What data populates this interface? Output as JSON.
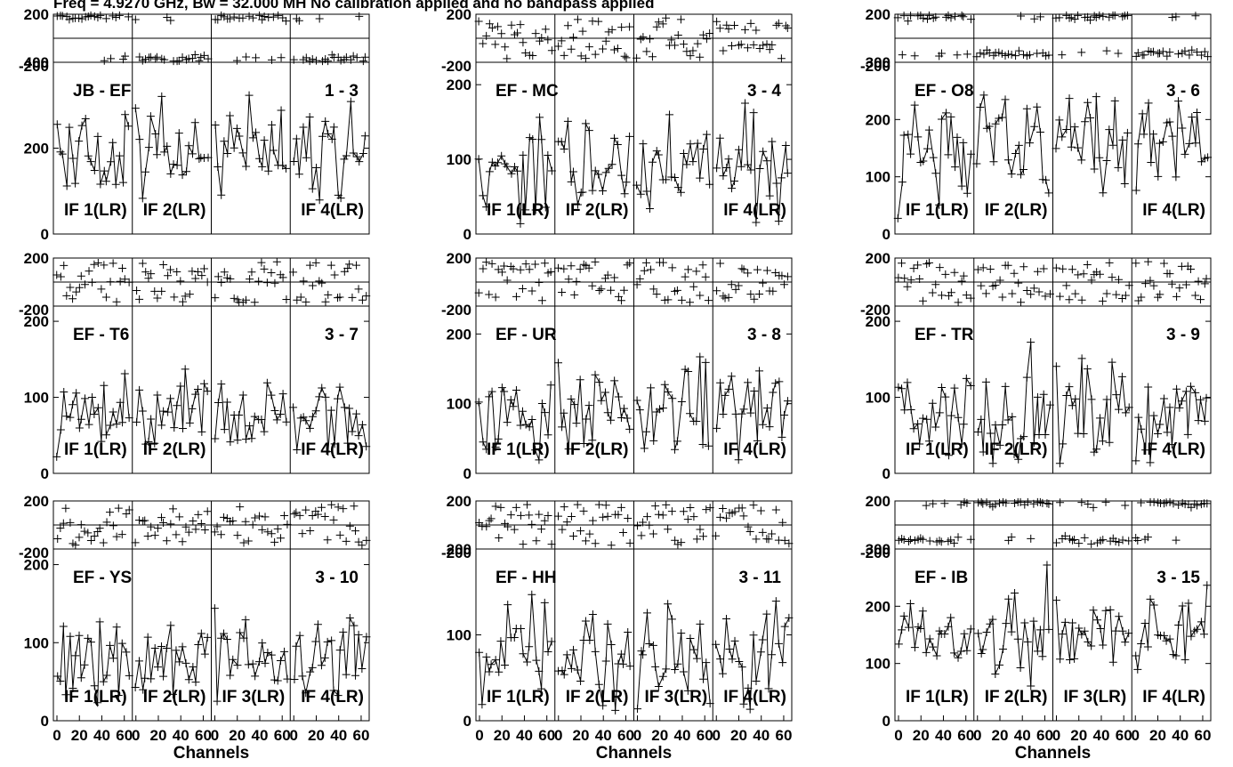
{
  "header": {
    "title": "Freq = 4.9270 GHz, Bw = 32.000 MH   No calibration applied and no bandpass applied"
  },
  "colors": {
    "ink": "#000000",
    "background": "#ffffff"
  },
  "chart_data": {
    "type": "line",
    "x_axis_label": "Channels",
    "x_tick_labels": [
      "0",
      "20",
      "40",
      "60"
    ],
    "xlim": [
      0,
      64
    ],
    "phase_ylim": [
      -200,
      200
    ],
    "phase_tick_labels": [
      "200",
      "-200"
    ],
    "if_labels": [
      "IF 1(LR)",
      "IF 2(LR)",
      "IF 3(LR)",
      "IF 4(LR)"
    ],
    "markers": "plus",
    "panels": [
      {
        "baseline": "JB - EF",
        "antennas": "1 - 3",
        "amp_ylim": [
          0,
          400
        ],
        "amp_ticks": [
          0,
          200,
          400
        ],
        "amp_tick_labels": [
          "0",
          "200",
          "400"
        ],
        "amp_center": 200,
        "amp_spread": 75,
        "phase_mode": "two-level",
        "phase_levels": [
          170,
          -170
        ],
        "if_label_show": [
          true,
          true,
          false,
          true
        ],
        "x_ticks_show": false
      },
      {
        "baseline": "EF - MC",
        "antennas": "3 - 4",
        "amp_ylim": [
          0,
          230
        ],
        "amp_ticks": [
          0,
          100,
          200
        ],
        "amp_tick_labels": [
          "0",
          "100",
          "200"
        ],
        "amp_center": 90,
        "amp_spread": 50,
        "phase_mode": "scatter",
        "phase_levels": [
          0
        ],
        "if_label_show": [
          true,
          true,
          false,
          true
        ],
        "x_ticks_show": false
      },
      {
        "baseline": "EF - O8",
        "antennas": "3 - 6",
        "amp_ylim": [
          0,
          300
        ],
        "amp_ticks": [
          0,
          100,
          200,
          300
        ],
        "amp_tick_labels": [
          "0",
          "100",
          "200",
          "300"
        ],
        "amp_center": 150,
        "amp_spread": 70,
        "phase_mode": "two-level",
        "phase_levels": [
          180,
          -130
        ],
        "if_label_show": [
          true,
          true,
          false,
          true
        ],
        "x_ticks_show": false
      },
      {
        "baseline": "EF - T6",
        "antennas": "3 - 7",
        "amp_ylim": [
          0,
          220
        ],
        "amp_ticks": [
          0,
          100,
          200
        ],
        "amp_tick_labels": [
          "0",
          "100",
          "200"
        ],
        "amp_center": 75,
        "amp_spread": 40,
        "phase_mode": "scatter",
        "phase_levels": [
          0
        ],
        "if_label_show": [
          true,
          true,
          false,
          true
        ],
        "x_ticks_show": false
      },
      {
        "baseline": "EF - UR",
        "antennas": "3 - 8",
        "amp_ylim": [
          0,
          240
        ],
        "amp_ticks": [
          0,
          100,
          200
        ],
        "amp_tick_labels": [
          "0",
          "100",
          "200"
        ],
        "amp_center": 90,
        "amp_spread": 45,
        "phase_mode": "scatter",
        "phase_levels": [
          0
        ],
        "if_label_show": [
          true,
          true,
          false,
          true
        ],
        "x_ticks_show": false
      },
      {
        "baseline": "EF - TR",
        "antennas": "3 - 9",
        "amp_ylim": [
          0,
          220
        ],
        "amp_ticks": [
          0,
          100,
          200
        ],
        "amp_tick_labels": [
          "0",
          "100",
          "200"
        ],
        "amp_center": 80,
        "amp_spread": 45,
        "phase_mode": "scatter",
        "phase_levels": [
          0
        ],
        "if_label_show": [
          true,
          true,
          false,
          true
        ],
        "x_ticks_show": false
      },
      {
        "baseline": "EF - YS",
        "antennas": "3 - 10",
        "amp_ylim": [
          0,
          220
        ],
        "amp_ticks": [
          0,
          100,
          200
        ],
        "amp_tick_labels": [
          "0",
          "100",
          "200"
        ],
        "amp_center": 80,
        "amp_spread": 40,
        "phase_mode": "scatter",
        "phase_levels": [
          0
        ],
        "if_label_show": [
          true,
          true,
          true,
          true
        ],
        "x_ticks_show": true
      },
      {
        "baseline": "EF - HH",
        "antennas": "3 - 11",
        "amp_ylim": [
          0,
          200
        ],
        "amp_ticks": [
          0,
          100,
          200
        ],
        "amp_tick_labels": [
          "0",
          "100",
          "200"
        ],
        "amp_center": 80,
        "amp_spread": 45,
        "phase_mode": "scatter",
        "phase_levels": [
          0
        ],
        "if_label_show": [
          true,
          true,
          true,
          true
        ],
        "x_ticks_show": true
      },
      {
        "baseline": "EF - IB",
        "antennas": "3 - 15",
        "amp_ylim": [
          0,
          300
        ],
        "amp_ticks": [
          0,
          100,
          200,
          300
        ],
        "amp_tick_labels": [
          "0",
          "100",
          "200",
          "300"
        ],
        "amp_center": 150,
        "amp_spread": 60,
        "phase_mode": "two-level",
        "phase_levels": [
          -120,
          180
        ],
        "if_label_show": [
          true,
          true,
          true,
          true
        ],
        "x_ticks_show": true
      }
    ]
  }
}
